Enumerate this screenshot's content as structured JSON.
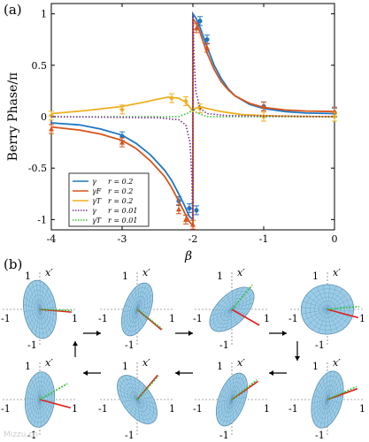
{
  "panel_a_label": "(a)",
  "panel_b_label": "(b)",
  "watermark": "Mizzu.cn",
  "colors": {
    "gamma_02": "#1f77c4",
    "gammaF_02": "#d95319",
    "gammaT_02": "#edb120",
    "gammaT_001": "#7e2f8e",
    "disc": "#9ccde8",
    "disc_mesh": "#5a8fb0",
    "red_line": "#e02020",
    "green_line": "#30c030",
    "olive_line": "#8a7a10"
  },
  "chart_data": {
    "type": "line",
    "xlabel": "β",
    "ylabel": "Berry Phase/π",
    "xlim": [
      -4,
      0
    ],
    "ylim": [
      -1.1,
      1.1
    ],
    "xticks": [
      -4,
      -3,
      -2,
      -1,
      0
    ],
    "yticks": [
      -1,
      -0.5,
      0,
      0.5,
      1
    ],
    "xtick_labels": [
      "-4",
      "-3",
      "-2",
      "-1",
      "0"
    ],
    "ytick_labels": [
      "-1",
      "-0.5",
      "0",
      "0.5",
      "1"
    ],
    "grid": false,
    "legend_position": "lower-left",
    "series": [
      {
        "name": "γ  r = 0.2",
        "legend_prefix": "γ",
        "legend_suffix": "r = 0.2",
        "color_key": "gamma_02",
        "style": "solid",
        "marker": "errorbar-circle",
        "curve": [
          [
            -4,
            -0.06
          ],
          [
            -3.6,
            -0.08
          ],
          [
            -3.3,
            -0.12
          ],
          [
            -3.0,
            -0.18
          ],
          [
            -2.8,
            -0.26
          ],
          [
            -2.6,
            -0.37
          ],
          [
            -2.4,
            -0.52
          ],
          [
            -2.3,
            -0.62
          ],
          [
            -2.2,
            -0.75
          ],
          [
            -2.12,
            -0.86
          ],
          [
            -2.05,
            -0.97
          ],
          [
            -2.0,
            -1.0
          ],
          [
            -2.0,
            1.0
          ],
          [
            -1.95,
            0.95
          ],
          [
            -1.9,
            0.87
          ],
          [
            -1.8,
            0.68
          ],
          [
            -1.7,
            0.5
          ],
          [
            -1.6,
            0.37
          ],
          [
            -1.5,
            0.27
          ],
          [
            -1.4,
            0.2
          ],
          [
            -1.2,
            0.12
          ],
          [
            -1.0,
            0.08
          ],
          [
            -0.7,
            0.05
          ],
          [
            -0.4,
            0.035
          ],
          [
            0,
            0.03
          ]
        ],
        "points": [
          [
            -3,
            -0.19
          ],
          [
            -2.2,
            -0.82
          ],
          [
            -2.05,
            -0.89
          ],
          [
            -1.95,
            -0.91
          ],
          [
            -1.9,
            0.93
          ],
          [
            -1.8,
            0.75
          ],
          [
            -1,
            0.1
          ],
          [
            0,
            0.04
          ]
        ]
      },
      {
        "name": "γF  r = 0.2",
        "legend_prefix": "γF",
        "legend_suffix": "r = 0.2",
        "color_key": "gammaF_02",
        "style": "solid",
        "marker": "errorbar-triangle",
        "curve": [
          [
            -4,
            -0.1
          ],
          [
            -3.6,
            -0.13
          ],
          [
            -3.3,
            -0.17
          ],
          [
            -3.0,
            -0.23
          ],
          [
            -2.8,
            -0.31
          ],
          [
            -2.6,
            -0.43
          ],
          [
            -2.4,
            -0.58
          ],
          [
            -2.3,
            -0.69
          ],
          [
            -2.2,
            -0.82
          ],
          [
            -2.12,
            -0.93
          ],
          [
            -2.05,
            -1.02
          ],
          [
            -2.0,
            -1.06
          ],
          [
            -2.0,
            0.95
          ],
          [
            -1.95,
            0.91
          ],
          [
            -1.9,
            0.82
          ],
          [
            -1.8,
            0.62
          ],
          [
            -1.7,
            0.46
          ],
          [
            -1.6,
            0.34
          ],
          [
            -1.5,
            0.26
          ],
          [
            -1.4,
            0.2
          ],
          [
            -1.2,
            0.13
          ],
          [
            -1.0,
            0.09
          ],
          [
            -0.7,
            0.065
          ],
          [
            -0.4,
            0.055
          ],
          [
            0,
            0.05
          ]
        ],
        "points": [
          [
            -4,
            -0.12
          ],
          [
            -3,
            -0.25
          ],
          [
            -2.2,
            -0.9
          ],
          [
            -2.1,
            -1.0
          ],
          [
            -2.0,
            -1.05
          ],
          [
            -1.95,
            0.86
          ],
          [
            -1.8,
            0.67
          ],
          [
            -1,
            0.1
          ],
          [
            0,
            0.05
          ]
        ]
      },
      {
        "name": "γT  r = 0.2",
        "legend_prefix": "γT",
        "legend_suffix": "r = 0.2",
        "color_key": "gammaT_02",
        "style": "solid",
        "marker": "errorbar-diamond",
        "curve": [
          [
            -4,
            0.03
          ],
          [
            -3.5,
            0.06
          ],
          [
            -3.0,
            0.1
          ],
          [
            -2.7,
            0.14
          ],
          [
            -2.5,
            0.17
          ],
          [
            -2.35,
            0.19
          ],
          [
            -2.2,
            0.18
          ],
          [
            -2.1,
            0.14
          ],
          [
            -2.03,
            0.08
          ],
          [
            -2.0,
            0.05
          ],
          [
            -1.97,
            0.08
          ],
          [
            -1.9,
            0.1
          ],
          [
            -1.8,
            0.08
          ],
          [
            -1.6,
            0.05
          ],
          [
            -1.3,
            0.02
          ],
          [
            -1.0,
            0.01
          ],
          [
            -0.5,
            0.003
          ],
          [
            0,
            0.0
          ]
        ],
        "points": [
          [
            -4,
            0.01
          ],
          [
            -3,
            0.07
          ],
          [
            -2.3,
            0.18
          ],
          [
            -2.1,
            0.15
          ],
          [
            -1.9,
            0.08
          ],
          [
            -1,
            0.0
          ],
          [
            0,
            0.0
          ]
        ]
      },
      {
        "name": "γT  r = 0.01",
        "legend_prefix": "γT",
        "legend_suffix": "r = 0.01",
        "color_key": "green_line",
        "style": "dotted",
        "marker": "none",
        "curve": [
          [
            -4,
            0.0
          ],
          [
            -2.2,
            0.0
          ],
          [
            -2.05,
            0.04
          ],
          [
            -2.0,
            0.08
          ],
          [
            -1.95,
            0.04
          ],
          [
            -1.8,
            0.0
          ],
          [
            0,
            0.0
          ]
        ]
      },
      {
        "name": "γ  r = 0.01",
        "legend_prefix": "γ",
        "legend_suffix": "r = 0.01",
        "color_key": "gammaT_001",
        "style": "dotted",
        "marker": "none",
        "curve": [
          [
            -4,
            0.0
          ],
          [
            -2.5,
            -0.01
          ],
          [
            -2.2,
            -0.03
          ],
          [
            -2.1,
            -0.08
          ],
          [
            -2.04,
            -0.25
          ],
          [
            -2.015,
            -0.6
          ],
          [
            -2.005,
            -0.95
          ],
          [
            -2.0,
            -1.0
          ],
          [
            -2.0,
            1.0
          ],
          [
            -1.995,
            0.95
          ],
          [
            -1.985,
            0.6
          ],
          [
            -1.96,
            0.25
          ],
          [
            -1.9,
            0.08
          ],
          [
            -1.8,
            0.03
          ],
          [
            -1.5,
            0.01
          ],
          [
            0,
            0.0
          ]
        ]
      }
    ]
  },
  "legend_rows": [
    {
      "prefix": "γ",
      "suffix": "r = 0.2",
      "color_key": "gamma_02",
      "style": "solid"
    },
    {
      "prefix": "γF",
      "suffix": "r = 0.2",
      "color_key": "gammaF_02",
      "style": "solid"
    },
    {
      "prefix": "γT",
      "suffix": "r = 0.2",
      "color_key": "gammaT_02",
      "style": "solid"
    },
    {
      "prefix": "γ",
      "suffix": "r = 0.01",
      "color_key": "gammaT_001",
      "style": "dotted"
    },
    {
      "prefix": "γT",
      "suffix": "r = 0.01",
      "color_key": "green_line",
      "style": "dotted"
    }
  ],
  "panel_b": {
    "axis_label": "x′",
    "tick_pos": "1",
    "tick_neg": "-1",
    "frames": [
      {
        "id": "b1",
        "tilt": -8,
        "rx": 0.55,
        "ry": 1.0,
        "red_angle": 5,
        "green_angle": 2
      },
      {
        "id": "b2",
        "tilt": 20,
        "rx": 0.45,
        "ry": 0.95,
        "red_angle": 40,
        "green_angle": 38
      },
      {
        "id": "b3",
        "tilt": 45,
        "rx": 0.5,
        "ry": 0.95,
        "red_angle": 30,
        "green_angle": -50
      },
      {
        "id": "b4",
        "tilt": 80,
        "rx": 0.85,
        "ry": 0.9,
        "red_angle": 15,
        "green_angle": -5
      },
      {
        "id": "b5",
        "tilt": 15,
        "rx": 0.5,
        "ry": 1.0,
        "red_angle": -20,
        "green_angle": -24
      },
      {
        "id": "b6",
        "tilt": 20,
        "rx": 0.45,
        "ry": 0.95,
        "red_angle": -35,
        "green_angle": -38
      },
      {
        "id": "b7",
        "tilt": -35,
        "rx": 0.5,
        "ry": 0.95,
        "red_angle": -50,
        "green_angle": -48
      },
      {
        "id": "b8",
        "tilt": 5,
        "rx": 0.5,
        "ry": 0.95,
        "red_angle": 15,
        "green_angle": -30
      }
    ]
  }
}
